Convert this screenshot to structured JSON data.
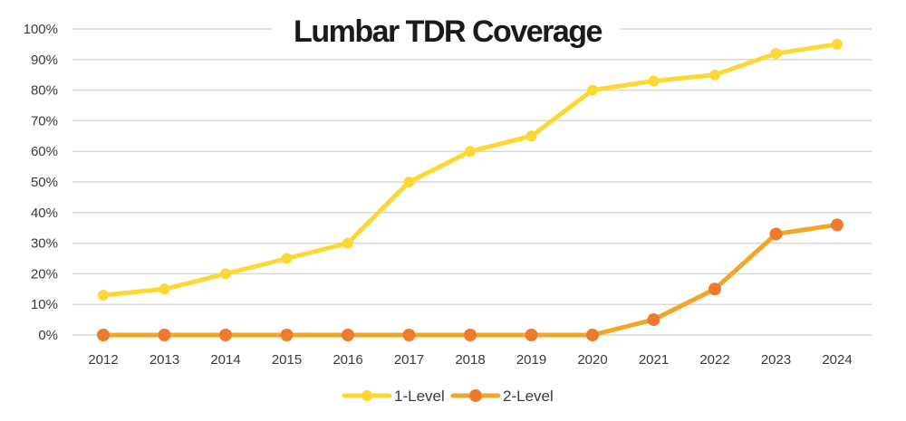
{
  "chart_data": {
    "type": "line",
    "title": "Lumbar TDR Coverage",
    "xlabel": "",
    "ylabel": "",
    "categories": [
      "2012",
      "2013",
      "2014",
      "2015",
      "2016",
      "2017",
      "2018",
      "2019",
      "2020",
      "2021",
      "2022",
      "2023",
      "2024"
    ],
    "y_ticks": [
      "0%",
      "10%",
      "20%",
      "30%",
      "40%",
      "50%",
      "60%",
      "70%",
      "80%",
      "90%",
      "100%"
    ],
    "ylim": [
      0,
      100
    ],
    "grid": true,
    "legend_position": "bottom",
    "series": [
      {
        "name": "1-Level",
        "line_color": "#FDD835",
        "marker_color": "#FDD835",
        "values": [
          13,
          15,
          20,
          25,
          30,
          50,
          60,
          65,
          80,
          83,
          85,
          92,
          95
        ]
      },
      {
        "name": "2-Level",
        "line_color": "#F2A628",
        "marker_color": "#EE7A2D",
        "values": [
          0,
          0,
          0,
          0,
          0,
          0,
          0,
          0,
          0,
          5,
          15,
          33,
          36
        ]
      }
    ]
  }
}
